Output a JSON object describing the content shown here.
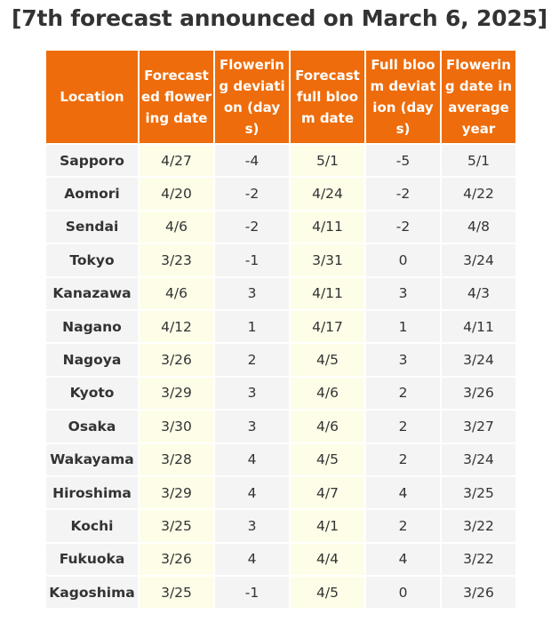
{
  "title": "[7th forecast announced on March 6, 2025]",
  "table": {
    "headers": [
      "Location",
      "Forecasted flowering date",
      "Flowering deviation (days)",
      "Forecast full bloom date",
      "Full bloom deviation (days)",
      "Flowering date in average year"
    ],
    "rows": [
      [
        "Sapporo",
        "4/27",
        "-4",
        "5/1",
        "-5",
        "5/1"
      ],
      [
        "Aomori",
        "4/20",
        "-2",
        "4/24",
        "-2",
        "4/22"
      ],
      [
        "Sendai",
        "4/6",
        "-2",
        "4/11",
        "-2",
        "4/8"
      ],
      [
        "Tokyo",
        "3/23",
        "-1",
        "3/31",
        "0",
        "3/24"
      ],
      [
        "Kanazawa",
        "4/6",
        "3",
        "4/11",
        "3",
        "4/3"
      ],
      [
        "Nagano",
        "4/12",
        "1",
        "4/17",
        "1",
        "4/11"
      ],
      [
        "Nagoya",
        "3/26",
        "2",
        "4/5",
        "3",
        "3/24"
      ],
      [
        "Kyoto",
        "3/29",
        "3",
        "4/6",
        "2",
        "3/26"
      ],
      [
        "Osaka",
        "3/30",
        "3",
        "4/6",
        "2",
        "3/27"
      ],
      [
        "Wakayama",
        "3/28",
        "4",
        "4/5",
        "2",
        "3/24"
      ],
      [
        "Hiroshima",
        "3/29",
        "4",
        "4/7",
        "4",
        "3/25"
      ],
      [
        "Kochi",
        "3/25",
        "3",
        "4/1",
        "2",
        "3/22"
      ],
      [
        "Fukuoka",
        "3/26",
        "4",
        "4/4",
        "4",
        "3/22"
      ],
      [
        "Kagoshima",
        "3/25",
        "-1",
        "4/5",
        "0",
        "3/26"
      ]
    ]
  },
  "colors": {
    "header_bg": "#ee6c0b",
    "header_text": "#ffffff",
    "cell_bg": "#f4f4f4",
    "highlight_bg": "#fefde8",
    "text": "#333333"
  }
}
